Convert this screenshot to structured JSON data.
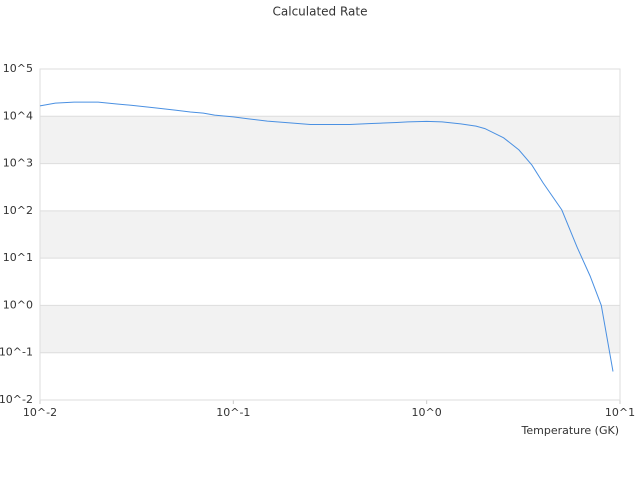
{
  "chart_data": {
    "type": "line",
    "title": "Calculated Rate",
    "x_label": "Temperature (GK)",
    "xscale": "log",
    "yscale": "log",
    "grid": true,
    "band_color": "#f2f2f2",
    "xlim": [
      0.01,
      10
    ],
    "ylim": [
      0.01,
      100000
    ],
    "xticks": [
      {
        "value": 0.01,
        "label": "10^-2"
      },
      {
        "value": 0.1,
        "label": "10^-1"
      },
      {
        "value": 1,
        "label": "10^0"
      },
      {
        "value": 10,
        "label": "10^1"
      }
    ],
    "yticks": [
      {
        "value": 0.01,
        "label": "10^-2"
      },
      {
        "value": 0.1,
        "label": "10^-1"
      },
      {
        "value": 1,
        "label": "10^0"
      },
      {
        "value": 10,
        "label": "10^1"
      },
      {
        "value": 100,
        "label": "10^2"
      },
      {
        "value": 1000,
        "label": "10^3"
      },
      {
        "value": 10000,
        "label": "10^4"
      },
      {
        "value": 100000,
        "label": "10^5"
      }
    ],
    "series": [
      {
        "color": "#4a90e2",
        "x": [
          0.01,
          0.012,
          0.015,
          0.02,
          0.025,
          0.03,
          0.04,
          0.05,
          0.06,
          0.07,
          0.08,
          0.1,
          0.12,
          0.15,
          0.2,
          0.25,
          0.3,
          0.4,
          0.5,
          0.6,
          0.7,
          0.8,
          1,
          1.2,
          1.5,
          1.8,
          2,
          2.5,
          3,
          3.5,
          4,
          5,
          6,
          7,
          8,
          9.2
        ],
        "values": [
          16600,
          19000,
          20000,
          20000,
          18200,
          17000,
          15000,
          13500,
          12300,
          11700,
          10600,
          9700,
          8800,
          7900,
          7200,
          6700,
          6700,
          6700,
          7000,
          7200,
          7400,
          7600,
          7800,
          7600,
          6900,
          6200,
          5500,
          3500,
          1950,
          930,
          390,
          105,
          17,
          4.2,
          1.0,
          0.04
        ]
      }
    ]
  }
}
